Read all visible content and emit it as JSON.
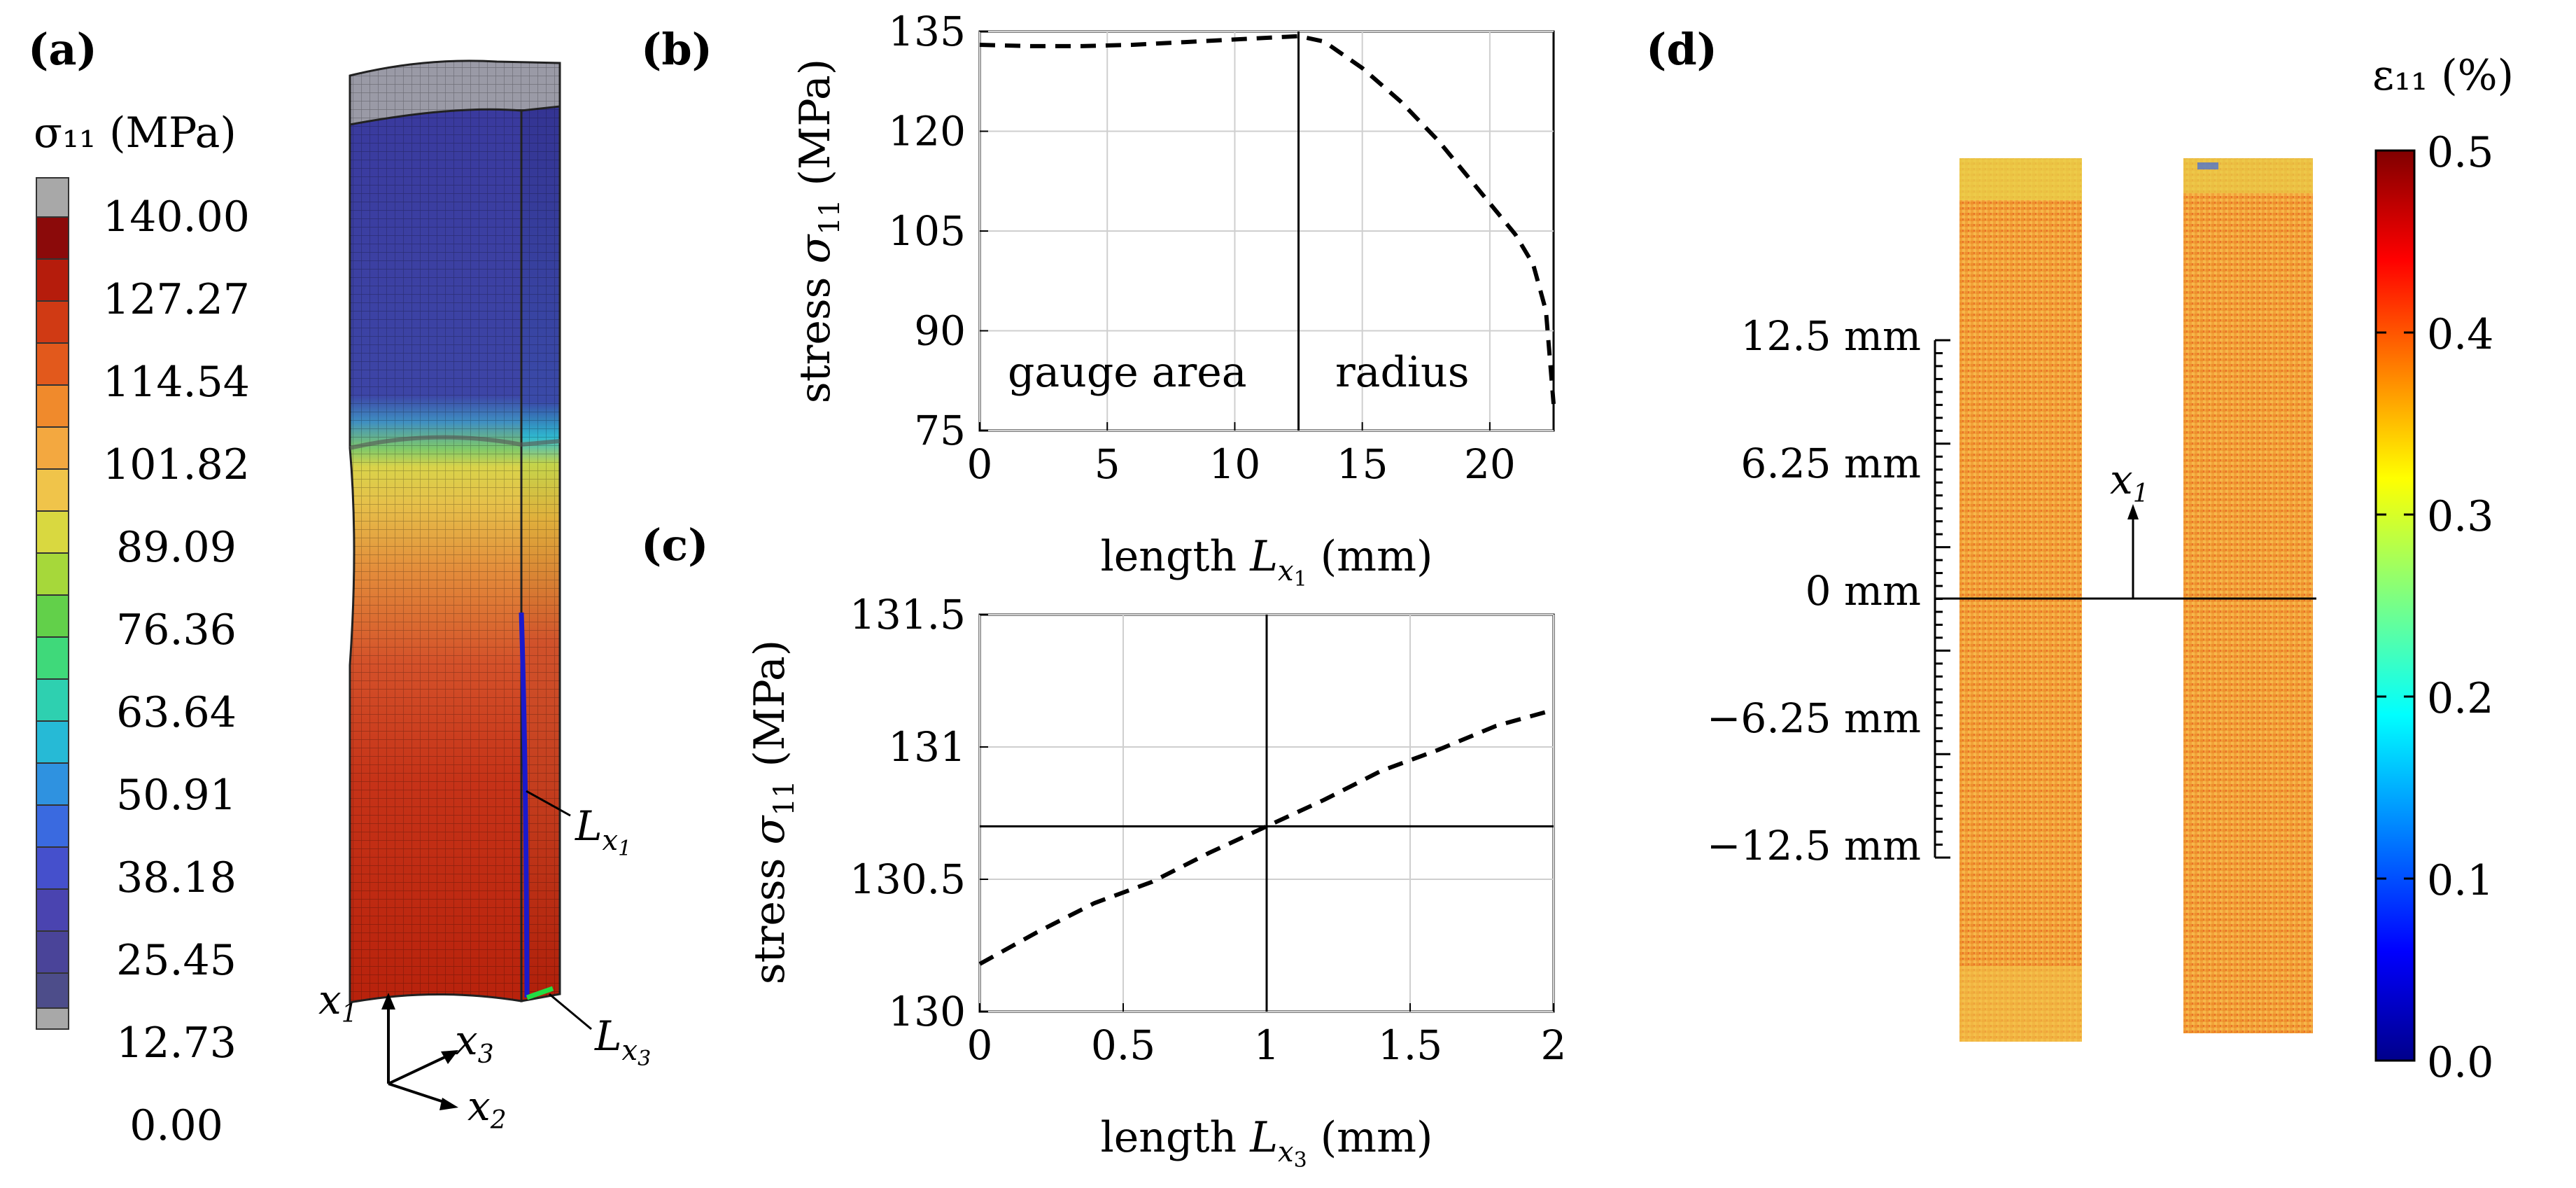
{
  "panels": {
    "a": {
      "label": "(a)",
      "colorbar_title": "σ₁₁ (MPa)",
      "colorbar_ticks": [
        "140.00",
        "127.27",
        "114.54",
        "101.82",
        "89.09",
        "76.36",
        "63.64",
        "50.91",
        "38.18",
        "25.45",
        "12.73",
        "0.00"
      ],
      "path_labels": [
        "L_x1",
        "L_x3"
      ],
      "axis_labels": [
        "x1",
        "x2",
        "x3"
      ]
    },
    "b": {
      "label": "(b)"
    },
    "c": {
      "label": "(c)"
    },
    "d": {
      "label": "(d)",
      "colorbar_title": "ε₁₁ (%)",
      "colorbar_ticks": [
        "0.5",
        "0.4",
        "0.3",
        "0.2",
        "0.1",
        "0.0"
      ],
      "scale_ticks": [
        "12.5 mm",
        "6.25 mm",
        "0 mm",
        "−6.25 mm",
        "−12.5 mm"
      ],
      "arrow_label": "x1"
    }
  },
  "chart_data": [
    {
      "id": "b",
      "type": "line",
      "xlabel": "length L_x1 (mm)",
      "ylabel": "stress σ11 (MPa)",
      "xlim": [
        0,
        22.5
      ],
      "ylim": [
        75,
        135
      ],
      "xticks": [
        0,
        5,
        10,
        15,
        20
      ],
      "yticks": [
        75,
        90,
        105,
        120,
        135
      ],
      "grid": true,
      "vline": 12.5,
      "annotations": [
        "gauge area",
        "radius"
      ],
      "series": [
        {
          "style": "dashed",
          "x": [
            0,
            2,
            4,
            6,
            8,
            10,
            12,
            12.5,
            13.5,
            15,
            16.5,
            18,
            19.5,
            21,
            21.7,
            22.2,
            22.5
          ],
          "y": [
            133,
            132.8,
            132.8,
            133,
            133.4,
            133.8,
            134.2,
            134.3,
            133.5,
            129.5,
            124.5,
            118.5,
            111.5,
            104.5,
            100,
            93,
            79
          ]
        }
      ]
    },
    {
      "id": "c",
      "type": "line",
      "xlabel": "length L_x3 (mm)",
      "ylabel": "stress σ11 (MPa)",
      "xlim": [
        0,
        2
      ],
      "ylim": [
        130,
        131.5
      ],
      "xticks": [
        0,
        0.5,
        1,
        1.5,
        2
      ],
      "yticks": [
        130,
        130.5,
        131,
        131.5
      ],
      "grid": true,
      "vline": 1,
      "hline": 130.7,
      "series": [
        {
          "style": "dashed",
          "x": [
            0,
            0.2,
            0.4,
            0.6,
            0.8,
            1.0,
            1.2,
            1.4,
            1.6,
            1.8,
            2.0
          ],
          "y": [
            130.18,
            130.3,
            130.41,
            130.49,
            130.6,
            130.7,
            130.8,
            130.91,
            130.99,
            131.08,
            131.14
          ]
        }
      ]
    }
  ],
  "colors": {
    "mesh_low": "#3f3fa3",
    "mesh_high": "#c72c0d",
    "jet_top": "#800000",
    "jet_bottom": "#00008b"
  }
}
